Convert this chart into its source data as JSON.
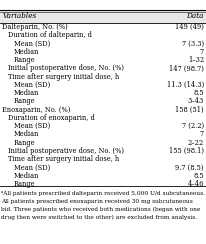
{
  "col_header": [
    "Variables",
    "Data"
  ],
  "rows": [
    {
      "label": "Dalteparin, No. (%)",
      "value": "149 (49)",
      "indent": 0
    },
    {
      "label": "Duration of dalteparin, d",
      "value": "",
      "indent": 1
    },
    {
      "label": "Mean (SD)",
      "value": "7 (3.3)",
      "indent": 2
    },
    {
      "label": "Median",
      "value": "7",
      "indent": 2
    },
    {
      "label": "Range",
      "value": "1–32",
      "indent": 2
    },
    {
      "label": "Initial postoperative dose, No. (%)",
      "value": "147 (98.7)",
      "indent": 1
    },
    {
      "label": "Time after surgery initial dose, h",
      "value": "",
      "indent": 1
    },
    {
      "label": "Mean (SD)",
      "value": "11.3 (14.3)",
      "indent": 2
    },
    {
      "label": "Median",
      "value": "8.5",
      "indent": 2
    },
    {
      "label": "Range",
      "value": "3–43",
      "indent": 2
    },
    {
      "label": "Enoxaparin, No. (%)",
      "value": "158 (51)",
      "indent": 0
    },
    {
      "label": "Duration of enoxaparin, d",
      "value": "",
      "indent": 1
    },
    {
      "label": "Mean (SD)",
      "value": "7 (2.2)",
      "indent": 2
    },
    {
      "label": "Median",
      "value": "7",
      "indent": 2
    },
    {
      "label": "Range",
      "value": "2–22",
      "indent": 2
    },
    {
      "label": "Initial postoperative dose, No. (%)",
      "value": "155 (98.1)",
      "indent": 1
    },
    {
      "label": "Time after surgery initial dose, h",
      "value": "",
      "indent": 1
    },
    {
      "label": "Mean (SD)",
      "value": "9.7 (8.5)",
      "indent": 2
    },
    {
      "label": "Median",
      "value": "8.5",
      "indent": 2
    },
    {
      "label": "Range",
      "value": "4–46",
      "indent": 2
    }
  ],
  "footnote_lines": [
    "ᵃAll patients prescribed dalteparin received 5,000 U/d subcutaneous.",
    "All patients prescribed enoxaparin received 30 mg subcutaneous",
    "bid. Three patients who received both medications (began with one",
    "drug then were switched to the other) are excluded from analysis."
  ],
  "bg_color": "#ffffff",
  "header_bg": "#e8e8e8",
  "text_color": "#000000",
  "font_size": 4.8,
  "header_font_size": 5.2,
  "footnote_font_size": 4.2
}
